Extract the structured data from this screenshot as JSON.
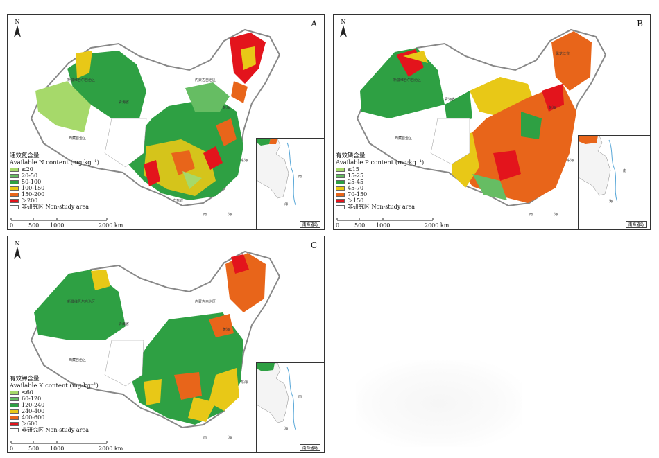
{
  "panels": [
    {
      "letter": "A",
      "legend_title_cn": "速效氮含量",
      "legend_title_en": "Available N content (mg·kg⁻¹)",
      "legend": [
        {
          "label": "≤20",
          "color": "#a6d96a"
        },
        {
          "label": "20-50",
          "color": "#66bd63"
        },
        {
          "label": "50-100",
          "color": "#2ea043"
        },
        {
          "label": "100-150",
          "color": "#e8c817"
        },
        {
          "label": "150-200",
          "color": "#e8651a"
        },
        {
          "label": "＞200",
          "color": "#e3141c"
        },
        {
          "label": "非研究区 Non-study area",
          "color": "#ffffff"
        }
      ]
    },
    {
      "letter": "B",
      "legend_title_cn": "有效磷含量",
      "legend_title_en": "Available P content (mg·kg⁻¹)",
      "legend": [
        {
          "label": "≤15",
          "color": "#a6d96a"
        },
        {
          "label": "15-25",
          "color": "#66bd63"
        },
        {
          "label": "25-45",
          "color": "#2ea043"
        },
        {
          "label": "45-70",
          "color": "#e8c817"
        },
        {
          "label": "70-150",
          "color": "#e8651a"
        },
        {
          "label": "＞150",
          "color": "#e3141c"
        },
        {
          "label": "非研究区 Non-study area",
          "color": "#ffffff"
        }
      ]
    },
    {
      "letter": "C",
      "legend_title_cn": "有效钾含量",
      "legend_title_en": "Available K content (mg·kg⁻¹)",
      "legend": [
        {
          "label": "≤60",
          "color": "#a6d96a"
        },
        {
          "label": "60-120",
          "color": "#66bd63"
        },
        {
          "label": "120-240",
          "color": "#2ea043"
        },
        {
          "label": "240-400",
          "color": "#e8c817"
        },
        {
          "label": "400-600",
          "color": "#e8651a"
        },
        {
          "label": "＞600",
          "color": "#e3141c"
        },
        {
          "label": "非研究区 Non-study area",
          "color": "#ffffff"
        }
      ]
    }
  ],
  "scale_bar": {
    "ticks": [
      "0",
      "500",
      "1000",
      "2000 km"
    ]
  },
  "north_label": "N",
  "inset_caption": "南海诸岛",
  "sea_labels": [
    "黄海",
    "东海",
    "南",
    "海"
  ]
}
